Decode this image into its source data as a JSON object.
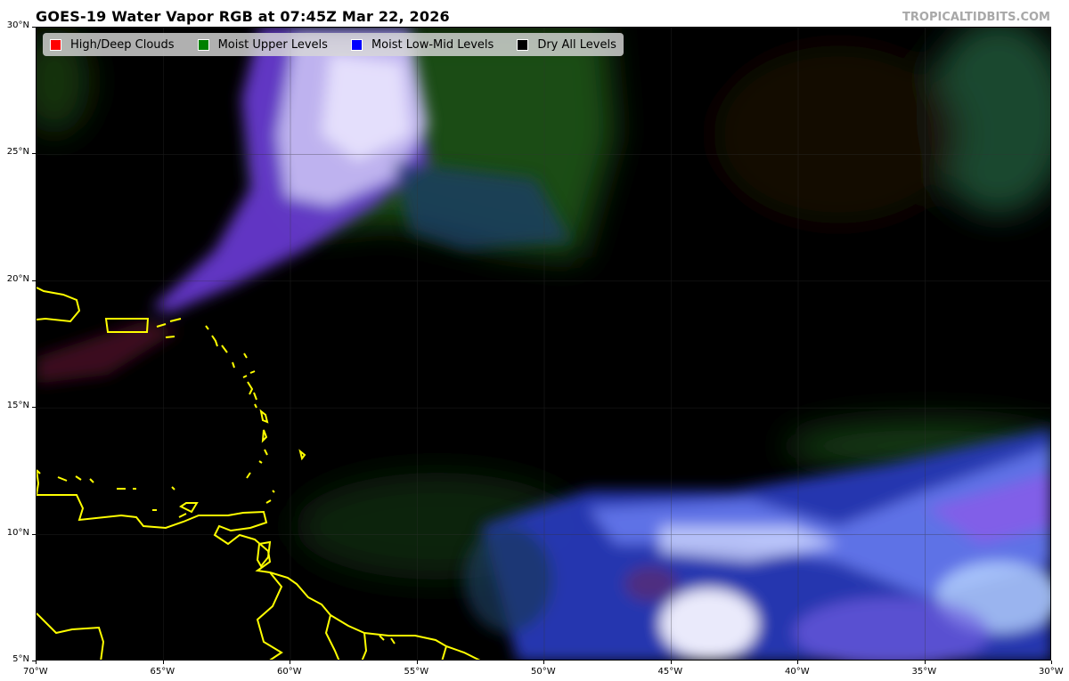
{
  "title": "GOES-19 Water Vapor RGB at 07:45Z Mar 22, 2026",
  "credit": "TROPICALTIDBITS.COM",
  "legend": [
    {
      "label": "High/Deep Clouds",
      "color": "#ff0000"
    },
    {
      "label": "Moist Upper Levels",
      "color": "#008000"
    },
    {
      "label": "Moist Low-Mid Levels",
      "color": "#0000ff"
    },
    {
      "label": "Dry All Levels",
      "color": "#000000"
    }
  ],
  "axes": {
    "lat_labels": [
      "30°N",
      "25°N",
      "20°N",
      "15°N",
      "10°N",
      "5°N"
    ],
    "lon_labels": [
      "70°W",
      "65°W",
      "60°W",
      "55°W",
      "50°W",
      "45°W",
      "40°W",
      "35°W",
      "30°W"
    ],
    "lat_range": [
      5,
      30
    ],
    "lon_range": [
      -70,
      -30
    ]
  },
  "coastline_color": "#ffff00"
}
